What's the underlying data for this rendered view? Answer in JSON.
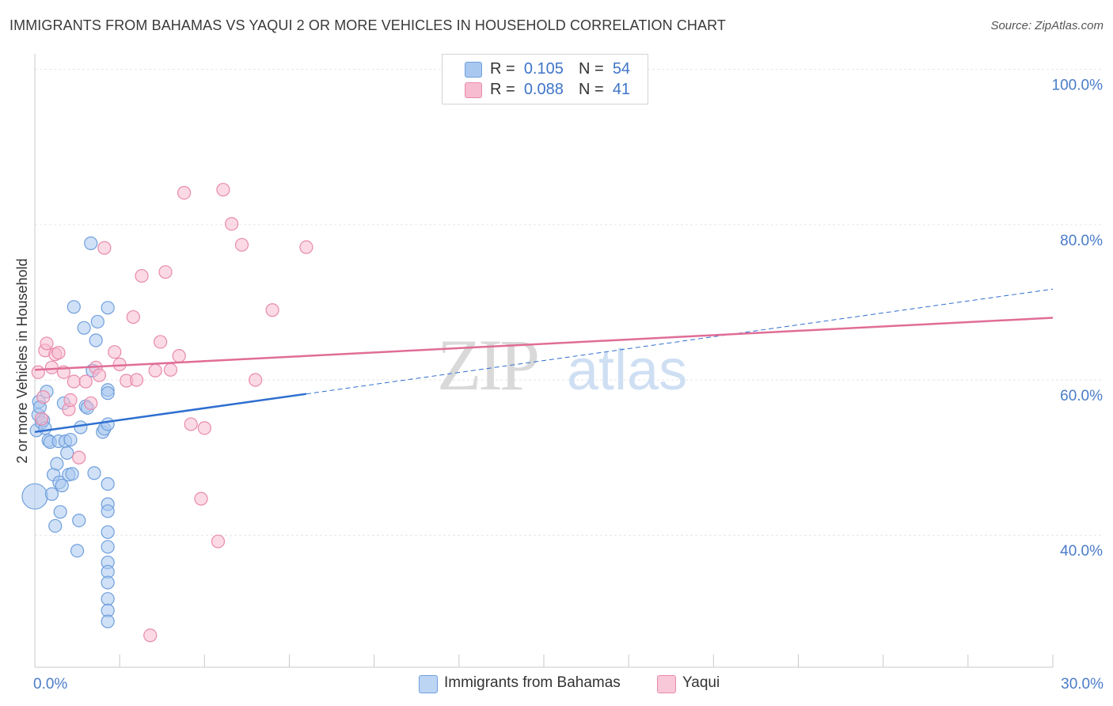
{
  "title": "IMMIGRANTS FROM BAHAMAS VS YAQUI 2 OR MORE VEHICLES IN HOUSEHOLD CORRELATION CHART",
  "source": "Source: ZipAtlas.com",
  "watermark": {
    "zip": "ZIP",
    "atlas": "atlas"
  },
  "legend": {
    "rows": [
      {
        "r_label": "R =",
        "r_value": "0.105",
        "n_label": "N =",
        "n_value": "54",
        "color": "#a9c8f0",
        "border": "#6f9fdc"
      },
      {
        "r_label": "R =",
        "r_value": "0.088",
        "n_label": "N =",
        "n_value": "41",
        "color": "#f7bcd0",
        "border": "#e88aab"
      }
    ]
  },
  "bottom_legend": [
    {
      "label": "Immigrants from Bahamas",
      "color": "#bcd5f3",
      "border": "#6f9fdc"
    },
    {
      "label": "Yaqui",
      "color": "#f9c8d8",
      "border": "#e88aab"
    }
  ],
  "chart_data": {
    "type": "scatter",
    "title": "IMMIGRANTS FROM BAHAMAS VS YAQUI 2 OR MORE VEHICLES IN HOUSEHOLD CORRELATION CHART",
    "xlabel": "",
    "ylabel": "2 or more Vehicles in Household",
    "xlim": [
      0,
      30
    ],
    "ylim": [
      23,
      102
    ],
    "x_tick_labels": [
      {
        "value": 0,
        "label": "0.0%"
      },
      {
        "value": 30,
        "label": "30.0%"
      }
    ],
    "y_tick_labels": [
      {
        "value": 100,
        "label": "100.0%"
      },
      {
        "value": 80,
        "label": "80.0%"
      },
      {
        "value": 60,
        "label": "60.0%"
      },
      {
        "value": 40,
        "label": "40.0%"
      }
    ],
    "grid": true,
    "series": [
      {
        "name": "Immigrants from Bahamas",
        "color": "#6f9fdc",
        "fill": "#a9c8f0",
        "trend": {
          "x0": 0,
          "y0": 53.3,
          "x1": 8.0,
          "y1": 58.2,
          "dashed_to_x": 30,
          "dashed_to_y": 71.7,
          "color": "#2f6fd0"
        },
        "points": [
          [
            0.0,
            45.0
          ],
          [
            0.05,
            53.5
          ],
          [
            0.1,
            55.5
          ],
          [
            0.12,
            57.2
          ],
          [
            0.15,
            56.5
          ],
          [
            0.2,
            54.5
          ],
          [
            0.25,
            54.8
          ],
          [
            0.3,
            53.8
          ],
          [
            0.35,
            58.5
          ],
          [
            0.4,
            52.2
          ],
          [
            0.45,
            52.0
          ],
          [
            0.5,
            45.3
          ],
          [
            0.55,
            47.8
          ],
          [
            0.6,
            41.2
          ],
          [
            0.65,
            49.2
          ],
          [
            0.7,
            52.1
          ],
          [
            0.72,
            46.8
          ],
          [
            0.75,
            43.0
          ],
          [
            0.8,
            46.4
          ],
          [
            0.85,
            57.0
          ],
          [
            0.9,
            52.1
          ],
          [
            0.95,
            50.6
          ],
          [
            1.0,
            47.8
          ],
          [
            1.05,
            52.3
          ],
          [
            1.1,
            47.9
          ],
          [
            1.15,
            69.4
          ],
          [
            1.25,
            38.0
          ],
          [
            1.3,
            41.9
          ],
          [
            1.35,
            53.9
          ],
          [
            1.45,
            66.7
          ],
          [
            1.5,
            56.6
          ],
          [
            1.55,
            56.4
          ],
          [
            1.65,
            77.6
          ],
          [
            1.7,
            61.2
          ],
          [
            1.75,
            48.0
          ],
          [
            1.8,
            65.1
          ],
          [
            1.85,
            67.5
          ],
          [
            2.0,
            53.3
          ],
          [
            2.05,
            53.7
          ],
          [
            2.15,
            69.3
          ],
          [
            2.15,
            58.7
          ],
          [
            2.15,
            58.3
          ],
          [
            2.15,
            54.3
          ],
          [
            2.15,
            46.6
          ],
          [
            2.15,
            44.0
          ],
          [
            2.15,
            43.1
          ],
          [
            2.15,
            40.4
          ],
          [
            2.15,
            38.5
          ],
          [
            2.15,
            36.5
          ],
          [
            2.15,
            35.3
          ],
          [
            2.15,
            33.9
          ],
          [
            2.15,
            31.8
          ],
          [
            2.15,
            30.3
          ],
          [
            2.15,
            28.9
          ]
        ]
      },
      {
        "name": "Yaqui",
        "color": "#e88aab",
        "fill": "#f7bcd0",
        "trend": {
          "x0": 0,
          "y0": 61.3,
          "x1": 30,
          "y1": 68.0,
          "color": "#e06d97"
        },
        "points": [
          [
            0.1,
            61.0
          ],
          [
            0.2,
            55.0
          ],
          [
            0.25,
            57.8
          ],
          [
            0.3,
            63.8
          ],
          [
            0.35,
            64.7
          ],
          [
            0.5,
            61.6
          ],
          [
            0.6,
            63.3
          ],
          [
            0.7,
            63.5
          ],
          [
            0.85,
            61.0
          ],
          [
            1.0,
            56.2
          ],
          [
            1.05,
            57.4
          ],
          [
            1.15,
            59.8
          ],
          [
            1.3,
            50.0
          ],
          [
            1.5,
            59.8
          ],
          [
            1.65,
            57.0
          ],
          [
            1.8,
            61.6
          ],
          [
            1.9,
            60.6
          ],
          [
            2.05,
            77.0
          ],
          [
            2.35,
            63.6
          ],
          [
            2.5,
            62.0
          ],
          [
            2.7,
            59.9
          ],
          [
            2.9,
            68.1
          ],
          [
            3.0,
            60.0
          ],
          [
            3.15,
            73.4
          ],
          [
            3.4,
            27.1
          ],
          [
            3.55,
            61.2
          ],
          [
            3.7,
            64.9
          ],
          [
            3.85,
            73.9
          ],
          [
            4.0,
            61.3
          ],
          [
            4.25,
            63.1
          ],
          [
            4.4,
            84.1
          ],
          [
            4.6,
            54.3
          ],
          [
            4.9,
            44.7
          ],
          [
            5.0,
            53.8
          ],
          [
            5.4,
            39.2
          ],
          [
            5.55,
            84.5
          ],
          [
            5.8,
            80.1
          ],
          [
            6.1,
            77.4
          ],
          [
            6.5,
            60.0
          ],
          [
            7.0,
            69.0
          ],
          [
            8.0,
            77.1
          ]
        ]
      }
    ]
  }
}
